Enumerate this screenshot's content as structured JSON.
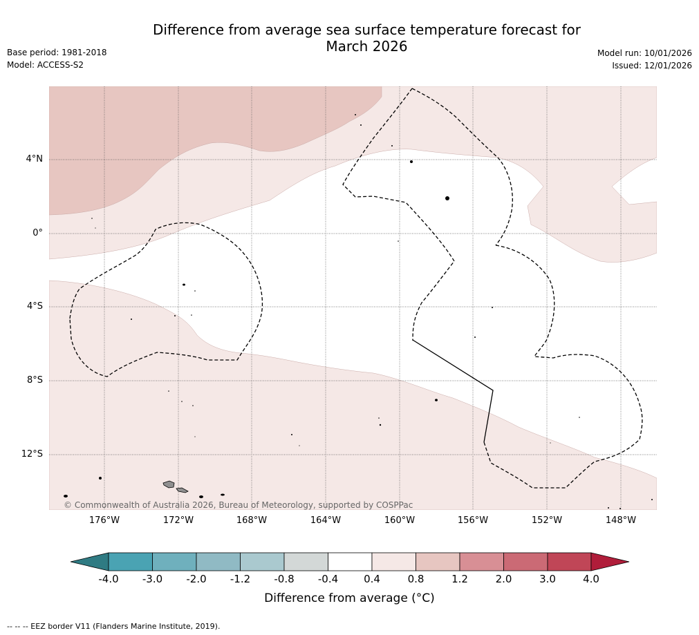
{
  "title": {
    "line1": "Difference from average sea surface temperature forecast for",
    "line2": "March 2026"
  },
  "meta": {
    "base_period": "Base period: 1981-2018",
    "model": "Model: ACCESS-S2",
    "model_run": "Model run: 10/01/2026",
    "issued": "Issued: 12/01/2026"
  },
  "axes": {
    "lat_labels": [
      "4°N",
      "0°",
      "4°S",
      "8°S",
      "12°S"
    ],
    "lon_labels": [
      "176°W",
      "172°W",
      "168°W",
      "164°W",
      "160°W",
      "156°W",
      "152°W",
      "148°W"
    ]
  },
  "copyright": "© Commonwealth of Australia 2026, Bureau of Meteorology, supported by COSPPac",
  "colorbar": {
    "title": "Difference from average (°C)",
    "tick_labels": [
      "-4.0",
      "-3.0",
      "-2.0",
      "-1.2",
      "-0.8",
      "-0.4",
      "0.4",
      "0.8",
      "1.2",
      "2.0",
      "3.0",
      "4.0"
    ],
    "colors": [
      "#2f7b83",
      "#4aa3b3",
      "#6fb0bd",
      "#90bac4",
      "#aac9cf",
      "#d3d8d7",
      "#ffffff",
      "#f5e8e6",
      "#e7c6c1",
      "#d88f95",
      "#cb6a75",
      "#c04657",
      "#b01d3a"
    ]
  },
  "map_colors": {
    "anomaly_04_08": "#f5e8e6",
    "anomaly_08_12": "#e7c6c1",
    "island": "#909090"
  },
  "footnote": "--  --  -- EEZ border V11 (Flanders Marine Institute, 2019)."
}
